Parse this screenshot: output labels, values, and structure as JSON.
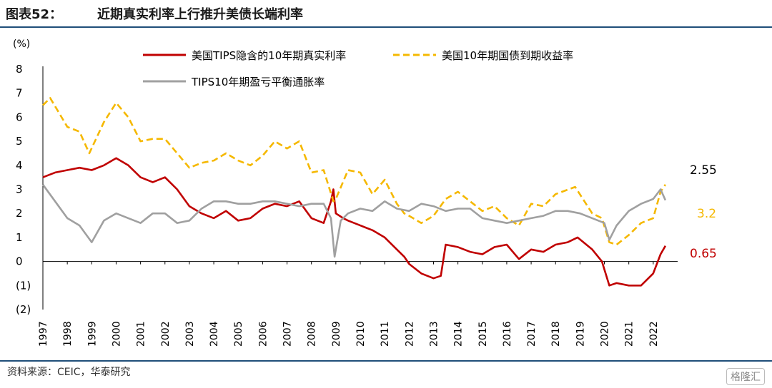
{
  "header": {
    "label": "图表52：",
    "title": "近期真实利率上行推升美债长端利率"
  },
  "footer": {
    "source": "资料来源：CEIC，华泰研究",
    "watermark": "格隆汇"
  },
  "chart_data": {
    "type": "line",
    "title": "近期真实利率上行推升美债长端利率",
    "ylabel": "(%)",
    "xlabel": "",
    "ylim": [
      -2,
      8
    ],
    "xlim": [
      1997,
      2023
    ],
    "y_ticks": [
      "(2)",
      "(1)",
      "0",
      "1",
      "2",
      "3",
      "4",
      "5",
      "6",
      "7",
      "8"
    ],
    "x_ticks": [
      "1997",
      "1998",
      "1999",
      "2000",
      "2001",
      "2002",
      "2003",
      "2004",
      "2005",
      "2006",
      "2007",
      "2008",
      "2009",
      "2010",
      "2011",
      "2012",
      "2013",
      "2014",
      "2015",
      "2016",
      "2017",
      "2018",
      "2019",
      "2020",
      "2021",
      "2022"
    ],
    "legend": [
      "美国TIPS隐含的10年期真实利率",
      "美国10年期国债到期收益率",
      "TIPS10年期盈亏平衡通胀率"
    ],
    "legend_position": "top",
    "series": [
      {
        "name": "美国TIPS隐含的10年期真实利率",
        "color": "#c00000",
        "style": "solid",
        "end_label": "0.65",
        "x": [
          1997.0,
          1997.5,
          1998.0,
          1998.5,
          1999.0,
          1999.5,
          2000.0,
          2000.5,
          2001.0,
          2001.5,
          2002.0,
          2002.5,
          2003.0,
          2003.5,
          2004.0,
          2004.5,
          2005.0,
          2005.5,
          2006.0,
          2006.5,
          2007.0,
          2007.5,
          2008.0,
          2008.5,
          2008.8,
          2008.9,
          2009.0,
          2009.3,
          2009.5,
          2010.0,
          2010.5,
          2011.0,
          2011.5,
          2011.8,
          2012.0,
          2012.5,
          2013.0,
          2013.3,
          2013.5,
          2014.0,
          2014.5,
          2015.0,
          2015.5,
          2016.0,
          2016.5,
          2017.0,
          2017.5,
          2018.0,
          2018.5,
          2018.9,
          2019.5,
          2019.9,
          2020.2,
          2020.5,
          2021.0,
          2021.5,
          2022.0,
          2022.3,
          2022.5
        ],
        "values": [
          3.5,
          3.7,
          3.8,
          3.9,
          3.8,
          4.0,
          4.3,
          4.0,
          3.5,
          3.3,
          3.5,
          3.0,
          2.3,
          2.0,
          1.8,
          2.1,
          1.7,
          1.8,
          2.2,
          2.4,
          2.3,
          2.5,
          1.8,
          1.6,
          2.5,
          3.0,
          2.0,
          1.8,
          1.7,
          1.5,
          1.3,
          1.0,
          0.5,
          0.2,
          -0.1,
          -0.5,
          -0.7,
          -0.6,
          0.7,
          0.6,
          0.4,
          0.3,
          0.6,
          0.7,
          0.1,
          0.5,
          0.4,
          0.7,
          0.8,
          1.0,
          0.5,
          0.0,
          -1.0,
          -0.9,
          -1.0,
          -1.0,
          -0.5,
          0.3,
          0.65
        ]
      },
      {
        "name": "美国10年期国债到期收益率",
        "color": "#f5b800",
        "style": "dashed",
        "end_label": "3.2",
        "x": [
          1997.0,
          1997.3,
          1998.0,
          1998.5,
          1998.9,
          1999.5,
          2000.0,
          2000.5,
          2001.0,
          2001.5,
          2002.0,
          2002.5,
          2003.0,
          2003.5,
          2004.0,
          2004.5,
          2005.0,
          2005.5,
          2006.0,
          2006.5,
          2007.0,
          2007.5,
          2008.0,
          2008.5,
          2008.9,
          2009.0,
          2009.5,
          2010.0,
          2010.5,
          2011.0,
          2011.5,
          2011.8,
          2012.0,
          2012.5,
          2013.0,
          2013.5,
          2014.0,
          2014.5,
          2015.0,
          2015.5,
          2016.0,
          2016.5,
          2017.0,
          2017.5,
          2018.0,
          2018.8,
          2019.5,
          2019.9,
          2020.2,
          2020.5,
          2021.0,
          2021.5,
          2022.0,
          2022.3,
          2022.5
        ],
        "values": [
          6.5,
          6.8,
          5.6,
          5.4,
          4.5,
          5.8,
          6.6,
          6.0,
          5.0,
          5.1,
          5.1,
          4.5,
          3.9,
          4.1,
          4.2,
          4.5,
          4.2,
          4.0,
          4.4,
          5.0,
          4.7,
          5.0,
          3.7,
          3.8,
          2.5,
          2.6,
          3.8,
          3.7,
          2.8,
          3.4,
          2.4,
          2.0,
          1.9,
          1.6,
          1.9,
          2.6,
          2.9,
          2.5,
          2.1,
          2.3,
          1.8,
          1.5,
          2.4,
          2.3,
          2.8,
          3.1,
          2.0,
          1.8,
          0.8,
          0.7,
          1.1,
          1.6,
          1.8,
          2.9,
          3.2
        ]
      },
      {
        "name": "TIPS10年期盈亏平衡通胀率",
        "color": "#a0a0a0",
        "style": "solid",
        "end_label": "2.55",
        "x": [
          1997.0,
          1997.5,
          1998.0,
          1998.5,
          1999.0,
          1999.5,
          2000.0,
          2000.5,
          2001.0,
          2001.5,
          2002.0,
          2002.5,
          2003.0,
          2003.5,
          2004.0,
          2004.5,
          2005.0,
          2005.5,
          2006.0,
          2006.5,
          2007.0,
          2007.5,
          2008.0,
          2008.5,
          2008.8,
          2008.95,
          2009.2,
          2009.5,
          2010.0,
          2010.5,
          2011.0,
          2011.5,
          2012.0,
          2012.5,
          2013.0,
          2013.5,
          2014.0,
          2014.5,
          2015.0,
          2015.5,
          2016.0,
          2016.5,
          2017.0,
          2017.5,
          2018.0,
          2018.5,
          2019.0,
          2019.5,
          2020.0,
          2020.2,
          2020.5,
          2021.0,
          2021.5,
          2022.0,
          2022.3,
          2022.5
        ],
        "values": [
          3.2,
          2.5,
          1.8,
          1.5,
          0.8,
          1.7,
          2.0,
          1.8,
          1.6,
          2.0,
          2.0,
          1.6,
          1.7,
          2.2,
          2.5,
          2.5,
          2.4,
          2.4,
          2.5,
          2.5,
          2.4,
          2.3,
          2.4,
          2.4,
          1.8,
          0.2,
          1.7,
          2.0,
          2.2,
          2.1,
          2.5,
          2.2,
          2.1,
          2.4,
          2.3,
          2.1,
          2.2,
          2.2,
          1.8,
          1.7,
          1.6,
          1.7,
          1.8,
          1.9,
          2.1,
          2.1,
          2.0,
          1.8,
          1.6,
          0.9,
          1.5,
          2.1,
          2.4,
          2.6,
          3.0,
          2.55
        ]
      }
    ]
  }
}
